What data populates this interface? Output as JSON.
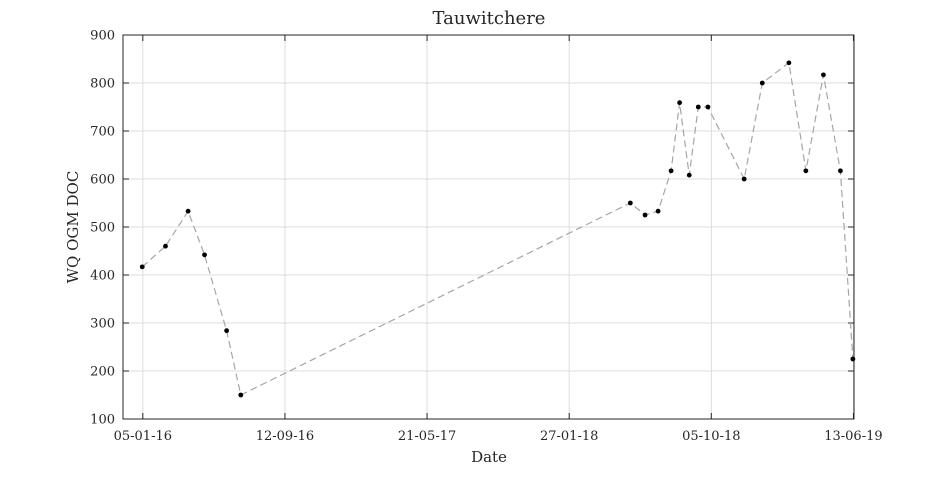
{
  "chart_data": {
    "type": "line",
    "title": "Tauwitchere",
    "xlabel": "Date",
    "ylabel": "WQ OGM DOC",
    "x_type": "date",
    "xlim": [
      "2015-12-01",
      "2019-06-14"
    ],
    "ylim": [
      100,
      900
    ],
    "grid": true,
    "legend": "none",
    "line_style": "dashed",
    "line_color": "#a6a6a6",
    "marker_color": "#000000",
    "x_ticks": [
      {
        "date": "2016-01-05",
        "label": "05-01-16"
      },
      {
        "date": "2016-09-12",
        "label": "12-09-16"
      },
      {
        "date": "2017-05-21",
        "label": "21-05-17"
      },
      {
        "date": "2018-01-27",
        "label": "27-01-18"
      },
      {
        "date": "2018-10-05",
        "label": "05-10-18"
      },
      {
        "date": "2019-06-13",
        "label": "13-06-19"
      }
    ],
    "y_ticks": [
      100,
      200,
      300,
      400,
      500,
      600,
      700,
      800,
      900
    ],
    "series": [
      {
        "points": [
          {
            "x": "2016-01-04",
            "y": 417
          },
          {
            "x": "2016-02-14",
            "y": 460
          },
          {
            "x": "2016-03-25",
            "y": 533
          },
          {
            "x": "2016-04-23",
            "y": 442
          },
          {
            "x": "2016-06-01",
            "y": 284
          },
          {
            "x": "2016-06-26",
            "y": 150
          },
          {
            "x": "2018-05-15",
            "y": 550
          },
          {
            "x": "2018-06-10",
            "y": 525
          },
          {
            "x": "2018-07-03",
            "y": 533
          },
          {
            "x": "2018-07-26",
            "y": 617
          },
          {
            "x": "2018-08-10",
            "y": 759
          },
          {
            "x": "2018-08-27",
            "y": 608
          },
          {
            "x": "2018-09-12",
            "y": 750
          },
          {
            "x": "2018-09-29",
            "y": 750
          },
          {
            "x": "2018-12-02",
            "y": 600
          },
          {
            "x": "2019-01-03",
            "y": 800
          },
          {
            "x": "2019-02-19",
            "y": 842
          },
          {
            "x": "2019-03-21",
            "y": 617
          },
          {
            "x": "2019-04-21",
            "y": 817
          },
          {
            "x": "2019-05-21",
            "y": 617
          },
          {
            "x": "2019-06-12",
            "y": 225
          }
        ]
      }
    ]
  }
}
